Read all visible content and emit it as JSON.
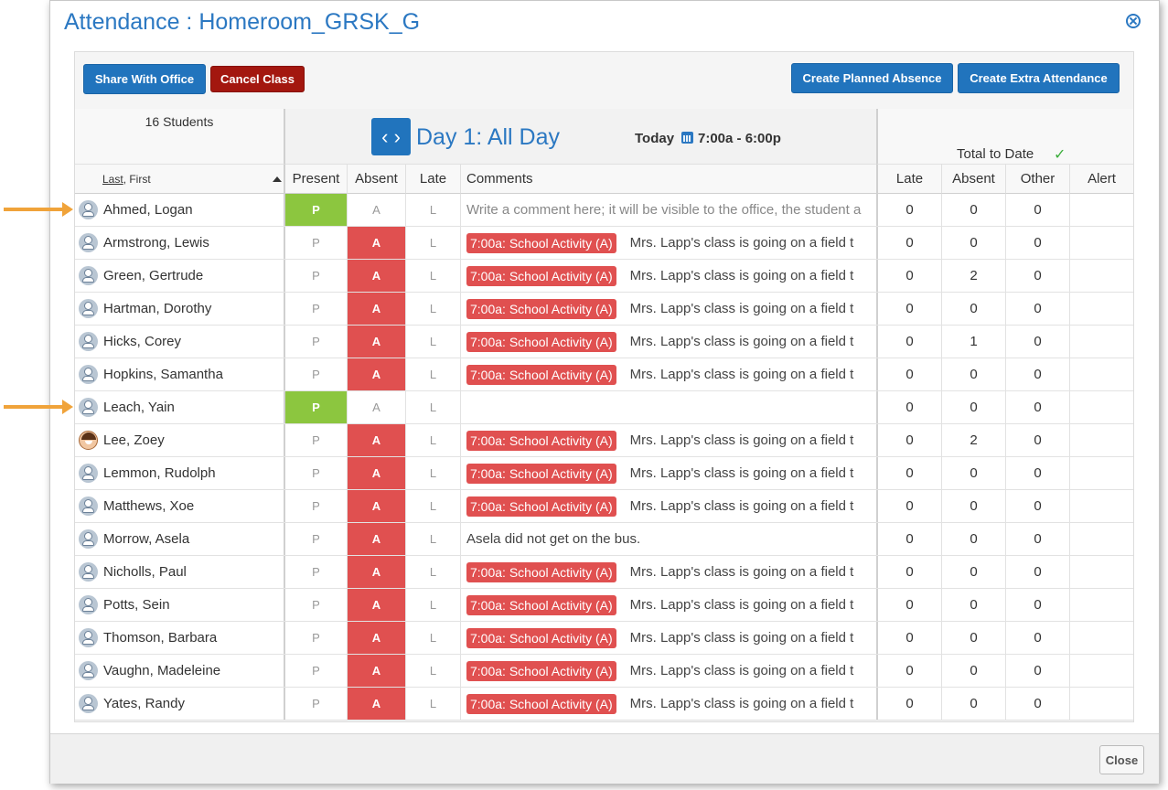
{
  "dialog": {
    "title": "Attendance : Homeroom_GRSK_G",
    "close_icon": "circle-x-icon"
  },
  "toolbar": {
    "share_label": "Share With Office",
    "cancel_label": "Cancel Class",
    "planned_absence_label": "Create Planned Absence",
    "extra_attendance_label": "Create Extra Attendance"
  },
  "roster": {
    "students_count": "16 Students",
    "sort_last": "Last",
    "sort_rest": ", First"
  },
  "day": {
    "label": "Day 1: All Day",
    "today_label": "Today",
    "time_range": "7:00a - 6:00p"
  },
  "totals": {
    "label": "Total to Date",
    "check": "✓"
  },
  "columns": {
    "present": "Present",
    "absent": "Absent",
    "late": "Late",
    "comments": "Comments",
    "t_late": "Late",
    "t_absent": "Absent",
    "t_other": "Other",
    "t_alert": "Alert"
  },
  "marks": {
    "p": "P",
    "a": "A",
    "l": "L"
  },
  "rows": [
    {
      "name": "Ahmed, Logan",
      "status": "P",
      "badge": "",
      "comment": "Write a comment here; it will be visible to the office, the student a",
      "placeholder": true,
      "late": "0",
      "absent": "0",
      "other": "0",
      "avatar": "default"
    },
    {
      "name": "Armstrong, Lewis",
      "status": "A",
      "badge": "7:00a: School Activity (A)",
      "comment": "Mrs. Lapp's class is going on a field t",
      "placeholder": false,
      "late": "0",
      "absent": "0",
      "other": "0",
      "avatar": "default"
    },
    {
      "name": "Green, Gertrude",
      "status": "A",
      "badge": "7:00a: School Activity (A)",
      "comment": "Mrs. Lapp's class is going on a field t",
      "placeholder": false,
      "late": "0",
      "absent": "2",
      "other": "0",
      "avatar": "default"
    },
    {
      "name": "Hartman, Dorothy",
      "status": "A",
      "badge": "7:00a: School Activity (A)",
      "comment": "Mrs. Lapp's class is going on a field t",
      "placeholder": false,
      "late": "0",
      "absent": "0",
      "other": "0",
      "avatar": "default"
    },
    {
      "name": "Hicks, Corey",
      "status": "A",
      "badge": "7:00a: School Activity (A)",
      "comment": "Mrs. Lapp's class is going on a field t",
      "placeholder": false,
      "late": "0",
      "absent": "1",
      "other": "0",
      "avatar": "default"
    },
    {
      "name": "Hopkins, Samantha",
      "status": "A",
      "badge": "7:00a: School Activity (A)",
      "comment": "Mrs. Lapp's class is going on a field t",
      "placeholder": false,
      "late": "0",
      "absent": "0",
      "other": "0",
      "avatar": "default"
    },
    {
      "name": "Leach, Yain",
      "status": "P",
      "badge": "",
      "comment": "",
      "placeholder": false,
      "late": "0",
      "absent": "0",
      "other": "0",
      "avatar": "default"
    },
    {
      "name": "Lee, Zoey",
      "status": "A",
      "badge": "7:00a: School Activity (A)",
      "comment": "Mrs. Lapp's class is going on a field t",
      "placeholder": false,
      "late": "0",
      "absent": "2",
      "other": "0",
      "avatar": "photo"
    },
    {
      "name": "Lemmon, Rudolph",
      "status": "A",
      "badge": "7:00a: School Activity (A)",
      "comment": "Mrs. Lapp's class is going on a field t",
      "placeholder": false,
      "late": "0",
      "absent": "0",
      "other": "0",
      "avatar": "default"
    },
    {
      "name": "Matthews, Xoe",
      "status": "A",
      "badge": "7:00a: School Activity (A)",
      "comment": "Mrs. Lapp's class is going on a field t",
      "placeholder": false,
      "late": "0",
      "absent": "0",
      "other": "0",
      "avatar": "default"
    },
    {
      "name": "Morrow, Asela",
      "status": "A",
      "badge": "",
      "comment": "Asela did not get on the bus.",
      "placeholder": false,
      "late": "0",
      "absent": "0",
      "other": "0",
      "avatar": "default"
    },
    {
      "name": "Nicholls, Paul",
      "status": "A",
      "badge": "7:00a: School Activity (A)",
      "comment": "Mrs. Lapp's class is going on a field t",
      "placeholder": false,
      "late": "0",
      "absent": "0",
      "other": "0",
      "avatar": "default"
    },
    {
      "name": "Potts, Sein",
      "status": "A",
      "badge": "7:00a: School Activity (A)",
      "comment": "Mrs. Lapp's class is going on a field t",
      "placeholder": false,
      "late": "0",
      "absent": "0",
      "other": "0",
      "avatar": "default"
    },
    {
      "name": "Thomson, Barbara",
      "status": "A",
      "badge": "7:00a: School Activity (A)",
      "comment": "Mrs. Lapp's class is going on a field t",
      "placeholder": false,
      "late": "0",
      "absent": "0",
      "other": "0",
      "avatar": "default"
    },
    {
      "name": "Vaughn, Madeleine",
      "status": "A",
      "badge": "7:00a: School Activity (A)",
      "comment": "Mrs. Lapp's class is going on a field t",
      "placeholder": false,
      "late": "0",
      "absent": "0",
      "other": "0",
      "avatar": "default"
    },
    {
      "name": "Yates, Randy",
      "status": "A",
      "badge": "7:00a: School Activity (A)",
      "comment": "Mrs. Lapp's class is going on a field t",
      "placeholder": false,
      "late": "0",
      "absent": "0",
      "other": "0",
      "avatar": "default"
    }
  ],
  "footer": {
    "close_label": "Close"
  },
  "colors": {
    "accent": "#2174bd",
    "cancel": "#a3170f",
    "present": "#8cc63f",
    "absent": "#e05050",
    "callout_arrow": "#f0a33a"
  }
}
